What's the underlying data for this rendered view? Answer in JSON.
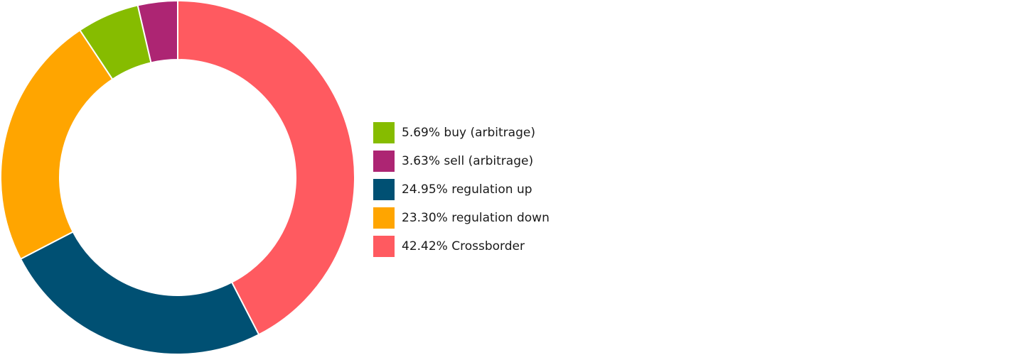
{
  "chart_data": {
    "type": "pie",
    "variant": "donut",
    "legend_position": "right",
    "series": [
      {
        "label": "42.42% Crossborder",
        "name": "Crossborder",
        "value": 42.42,
        "color": "#ff5a60"
      },
      {
        "label": "24.95% regulation up",
        "name": "regulation up",
        "value": 24.95,
        "color": "#005073"
      },
      {
        "label": "23.30% regulation down",
        "name": "regulation down",
        "value": 23.3,
        "color": "#ffa500"
      },
      {
        "label": "5.69% buy (arbitrage)",
        "name": "buy (arbitrage)",
        "value": 5.69,
        "color": "#86bc00"
      },
      {
        "label": "3.63% sell (arbitrage)",
        "name": "sell (arbitrage)",
        "value": 3.63,
        "color": "#ad2573"
      }
    ],
    "legend_order": [
      3,
      4,
      1,
      2,
      0
    ]
  }
}
